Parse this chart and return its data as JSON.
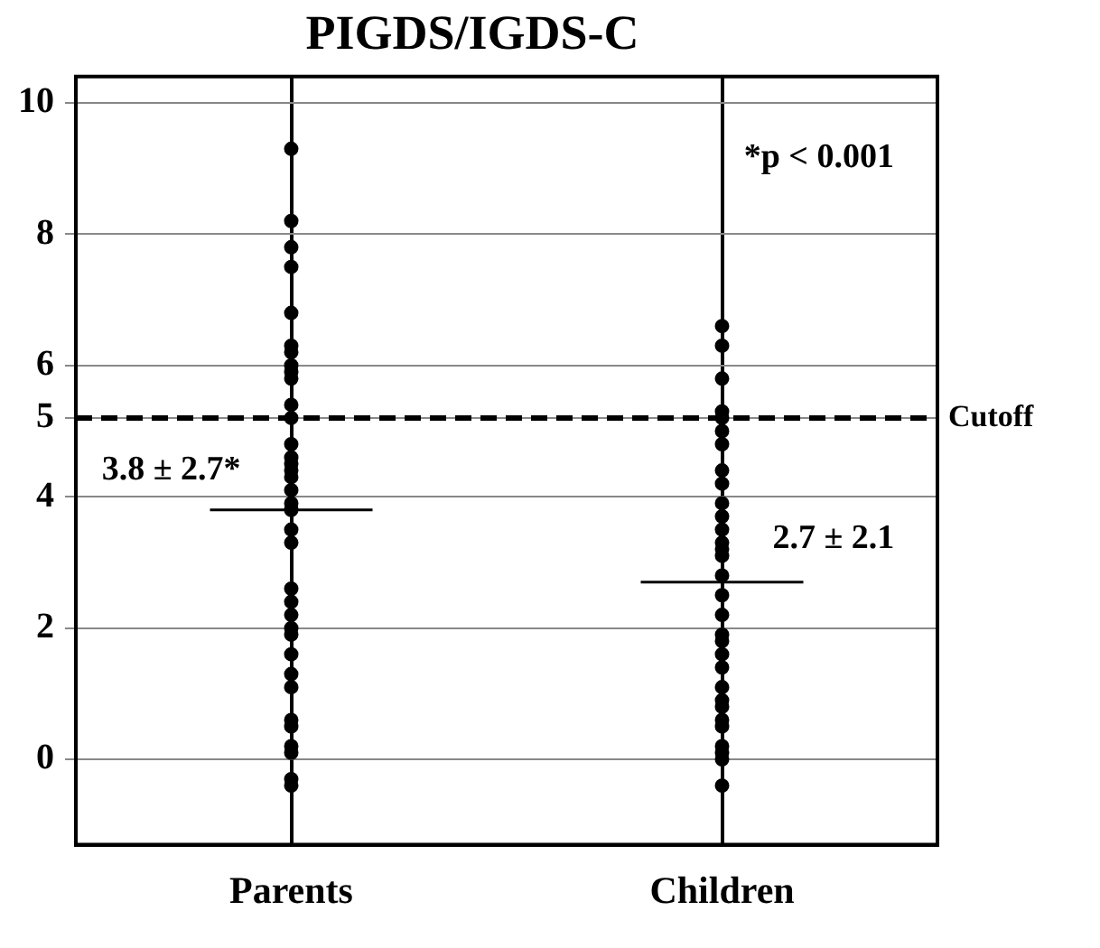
{
  "chart_data": {
    "type": "scatter",
    "title": "PIGDS/IGDS-C",
    "categories": [
      "Parents",
      "Children"
    ],
    "series": [
      {
        "color": "#000000",
        "x": [
          "Parents",
          "Parents",
          "Parents",
          "Parents",
          "Parents",
          "Parents",
          "Parents",
          "Parents",
          "Parents",
          "Parents",
          "Parents",
          "Parents",
          "Parents",
          "Parents",
          "Parents",
          "Parents",
          "Parents",
          "Parents",
          "Parents",
          "Parents",
          "Parents",
          "Parents",
          "Parents",
          "Parents",
          "Parents",
          "Parents",
          "Parents",
          "Parents",
          "Parents",
          "Parents",
          "Parents",
          "Parents",
          "Parents",
          "Parents",
          "Parents",
          "Parents"
        ],
        "values": [
          9.3,
          8.2,
          7.8,
          7.5,
          6.8,
          6.3,
          6.2,
          6.0,
          5.9,
          5.8,
          5.4,
          5.2,
          4.8,
          4.6,
          4.5,
          4.4,
          4.3,
          4.1,
          3.9,
          3.8,
          3.5,
          3.3,
          2.6,
          2.4,
          2.2,
          2.0,
          1.9,
          1.6,
          1.3,
          1.1,
          0.6,
          0.5,
          0.2,
          0.1,
          -0.3,
          -0.4
        ]
      },
      {
        "color": "#000000",
        "x": [
          "Children",
          "Children",
          "Children",
          "Children",
          "Children",
          "Children",
          "Children",
          "Children",
          "Children",
          "Children",
          "Children",
          "Children",
          "Children",
          "Children",
          "Children",
          "Children",
          "Children",
          "Children",
          "Children",
          "Children",
          "Children",
          "Children",
          "Children",
          "Children",
          "Children",
          "Children",
          "Children",
          "Children",
          "Children",
          "Children",
          "Children"
        ],
        "values": [
          6.6,
          6.3,
          5.8,
          5.3,
          5.2,
          5.0,
          4.8,
          4.4,
          4.2,
          3.9,
          3.7,
          3.3,
          3.2,
          3.1,
          2.8,
          2.5,
          2.2,
          1.9,
          1.6,
          1.4,
          1.1,
          0.9,
          0.6,
          0.5,
          0.2,
          0.1,
          0.0,
          -0.4,
          3.5,
          1.8,
          0.8
        ]
      }
    ],
    "ylim": [
      -1.3,
      10.4
    ],
    "yticks": [
      0,
      2,
      4,
      {
        "value": 5.2,
        "label": "5"
      },
      6,
      8,
      10
    ],
    "ref_lines": [
      {
        "axis": "y",
        "value": 5.2,
        "label": "Cutoff",
        "line_style": "dashed",
        "color": "#000000"
      }
    ],
    "annotations": [
      {
        "text": "3.8 ± 2.7*",
        "x": "Parents",
        "y": 3.8
      },
      {
        "text": "2.7 ± 2.1",
        "x": "Children",
        "y": 2.7
      },
      "*p < 0.001"
    ],
    "grid": true,
    "legend": false,
    "marker": "circle"
  }
}
